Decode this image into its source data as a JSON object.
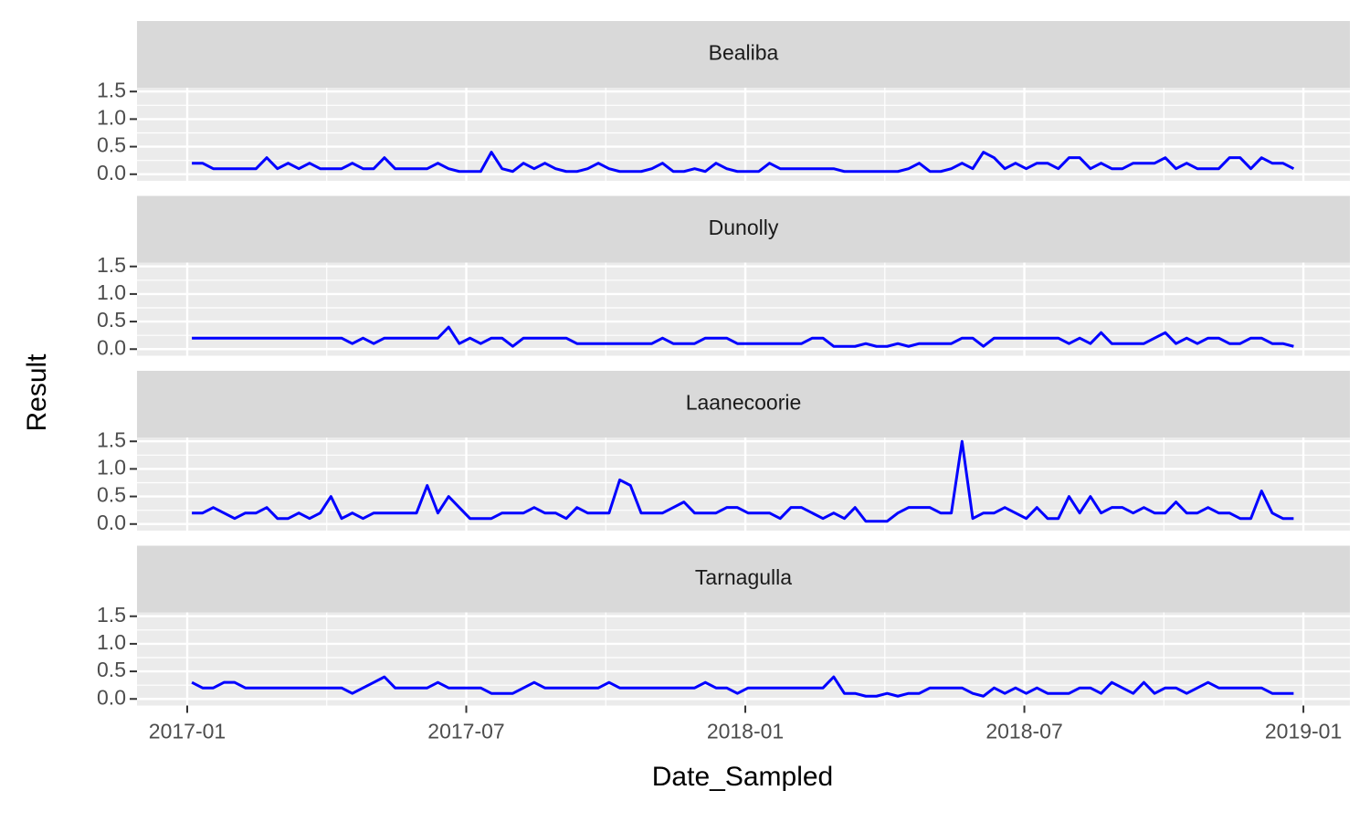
{
  "chart_data": {
    "type": "line",
    "xlabel": "Date_Sampled",
    "ylabel": "Result",
    "x": [
      0.1,
      0.33,
      0.56,
      0.79,
      1.02,
      1.25,
      1.48,
      1.71,
      1.94,
      2.17,
      2.4,
      2.63,
      2.86,
      3.09,
      3.32,
      3.55,
      3.78,
      4.01,
      4.24,
      4.47,
      4.7,
      4.93,
      5.16,
      5.39,
      5.62,
      5.85,
      6.08,
      6.31,
      6.54,
      6.77,
      7,
      7.23,
      7.46,
      7.69,
      7.92,
      8.15,
      8.38,
      8.61,
      8.84,
      9.07,
      9.3,
      9.53,
      9.76,
      9.99,
      10.22,
      10.45,
      10.68,
      10.91,
      11.14,
      11.37,
      11.6,
      11.83,
      12.06,
      12.29,
      12.52,
      12.75,
      12.98,
      13.21,
      13.44,
      13.67,
      13.9,
      14.13,
      14.36,
      14.59,
      14.82,
      15.05,
      15.28,
      15.51,
      15.74,
      15.97,
      16.2,
      16.43,
      16.66,
      16.89,
      17.12,
      17.35,
      17.58,
      17.81,
      18.04,
      18.27,
      18.5,
      18.73,
      18.96,
      19.19,
      19.42,
      19.65,
      19.88,
      20.11,
      20.34,
      20.57,
      20.8,
      21.03,
      21.26,
      21.49,
      21.72,
      21.95,
      22.18,
      22.41,
      22.64,
      22.87,
      23.1,
      23.33,
      23.56,
      23.79
    ],
    "series": [
      {
        "name": "Bealiba",
        "color": "#0000ff",
        "values": [
          0.2,
          0.2,
          0.1,
          0.1,
          0.1,
          0.1,
          0.1,
          0.3,
          0.1,
          0.2,
          0.1,
          0.2,
          0.1,
          0.1,
          0.1,
          0.2,
          0.1,
          0.1,
          0.3,
          0.1,
          0.1,
          0.1,
          0.1,
          0.2,
          0.1,
          0.05,
          0.05,
          0.05,
          0.4,
          0.1,
          0.05,
          0.2,
          0.1,
          0.2,
          0.1,
          0.05,
          0.05,
          0.1,
          0.2,
          0.1,
          0.05,
          0.05,
          0.05,
          0.1,
          0.2,
          0.05,
          0.05,
          0.1,
          0.05,
          0.2,
          0.1,
          0.05,
          0.05,
          0.05,
          0.2,
          0.1,
          0.1,
          0.1,
          0.1,
          0.1,
          0.1,
          0.05,
          0.05,
          0.05,
          0.05,
          0.05,
          0.05,
          0.1,
          0.2,
          0.05,
          0.05,
          0.1,
          0.2,
          0.1,
          0.4,
          0.3,
          0.1,
          0.2,
          0.1,
          0.2,
          0.2,
          0.1,
          0.3,
          0.3,
          0.1,
          0.2,
          0.1,
          0.1,
          0.2,
          0.2,
          0.2,
          0.3,
          0.1,
          0.2,
          0.1,
          0.1,
          0.1,
          0.3,
          0.3,
          0.1,
          0.3,
          0.2,
          0.2,
          0.1
        ]
      },
      {
        "name": "Dunolly",
        "color": "#0000ff",
        "values": [
          0.2,
          0.2,
          0.2,
          0.2,
          0.2,
          0.2,
          0.2,
          0.2,
          0.2,
          0.2,
          0.2,
          0.2,
          0.2,
          0.2,
          0.2,
          0.1,
          0.2,
          0.1,
          0.2,
          0.2,
          0.2,
          0.2,
          0.2,
          0.2,
          0.4,
          0.1,
          0.2,
          0.1,
          0.2,
          0.2,
          0.05,
          0.2,
          0.2,
          0.2,
          0.2,
          0.2,
          0.1,
          0.1,
          0.1,
          0.1,
          0.1,
          0.1,
          0.1,
          0.1,
          0.2,
          0.1,
          0.1,
          0.1,
          0.2,
          0.2,
          0.2,
          0.1,
          0.1,
          0.1,
          0.1,
          0.1,
          0.1,
          0.1,
          0.2,
          0.2,
          0.05,
          0.05,
          0.05,
          0.1,
          0.05,
          0.05,
          0.1,
          0.05,
          0.1,
          0.1,
          0.1,
          0.1,
          0.2,
          0.2,
          0.05,
          0.2,
          0.2,
          0.2,
          0.2,
          0.2,
          0.2,
          0.2,
          0.1,
          0.2,
          0.1,
          0.3,
          0.1,
          0.1,
          0.1,
          0.1,
          0.2,
          0.3,
          0.1,
          0.2,
          0.1,
          0.2,
          0.2,
          0.1,
          0.1,
          0.2,
          0.2,
          0.1,
          0.1,
          0.05
        ]
      },
      {
        "name": "Laanecoorie",
        "color": "#0000ff",
        "values": [
          0.2,
          0.2,
          0.3,
          0.2,
          0.1,
          0.2,
          0.2,
          0.3,
          0.1,
          0.1,
          0.2,
          0.1,
          0.2,
          0.5,
          0.1,
          0.2,
          0.1,
          0.2,
          0.2,
          0.2,
          0.2,
          0.2,
          0.7,
          0.2,
          0.5,
          0.3,
          0.1,
          0.1,
          0.1,
          0.2,
          0.2,
          0.2,
          0.3,
          0.2,
          0.2,
          0.1,
          0.3,
          0.2,
          0.2,
          0.2,
          0.8,
          0.7,
          0.2,
          0.2,
          0.2,
          0.3,
          0.4,
          0.2,
          0.2,
          0.2,
          0.3,
          0.3,
          0.2,
          0.2,
          0.2,
          0.1,
          0.3,
          0.3,
          0.2,
          0.1,
          0.2,
          0.1,
          0.3,
          0.05,
          0.05,
          0.05,
          0.2,
          0.3,
          0.3,
          0.3,
          0.2,
          0.2,
          1.5,
          0.1,
          0.2,
          0.2,
          0.3,
          0.2,
          0.1,
          0.3,
          0.1,
          0.1,
          0.5,
          0.2,
          0.5,
          0.2,
          0.3,
          0.3,
          0.2,
          0.3,
          0.2,
          0.2,
          0.4,
          0.2,
          0.2,
          0.3,
          0.2,
          0.2,
          0.1,
          0.1,
          0.6,
          0.2,
          0.1,
          0.1
        ]
      },
      {
        "name": "Tarnagulla",
        "color": "#0000ff",
        "values": [
          0.3,
          0.2,
          0.2,
          0.3,
          0.3,
          0.2,
          0.2,
          0.2,
          0.2,
          0.2,
          0.2,
          0.2,
          0.2,
          0.2,
          0.2,
          0.1,
          0.2,
          0.3,
          0.4,
          0.2,
          0.2,
          0.2,
          0.2,
          0.3,
          0.2,
          0.2,
          0.2,
          0.2,
          0.1,
          0.1,
          0.1,
          0.2,
          0.3,
          0.2,
          0.2,
          0.2,
          0.2,
          0.2,
          0.2,
          0.3,
          0.2,
          0.2,
          0.2,
          0.2,
          0.2,
          0.2,
          0.2,
          0.2,
          0.3,
          0.2,
          0.2,
          0.1,
          0.2,
          0.2,
          0.2,
          0.2,
          0.2,
          0.2,
          0.2,
          0.2,
          0.4,
          0.1,
          0.1,
          0.05,
          0.05,
          0.1,
          0.05,
          0.1,
          0.1,
          0.2,
          0.2,
          0.2,
          0.2,
          0.1,
          0.05,
          0.2,
          0.1,
          0.2,
          0.1,
          0.2,
          0.1,
          0.1,
          0.1,
          0.2,
          0.2,
          0.1,
          0.3,
          0.2,
          0.1,
          0.3,
          0.1,
          0.2,
          0.2,
          0.1,
          0.2,
          0.3,
          0.2,
          0.2,
          0.2,
          0.2,
          0.2,
          0.1,
          0.1,
          0.1
        ]
      }
    ],
    "xlim": [
      -1.08,
      25.0
    ],
    "xticks": [
      {
        "value": 0,
        "label": "2017-01"
      },
      {
        "value": 6,
        "label": "2017-07"
      },
      {
        "value": 12,
        "label": "2018-01"
      },
      {
        "value": 18,
        "label": "2018-07"
      },
      {
        "value": 24,
        "label": "2019-01"
      }
    ],
    "ylim": [
      -0.12,
      1.57
    ],
    "yticks": [
      {
        "value": 0,
        "label": "0.0"
      },
      0.5,
      {
        "value": 1,
        "label": "1.0"
      },
      1.5
    ],
    "grid": true
  }
}
